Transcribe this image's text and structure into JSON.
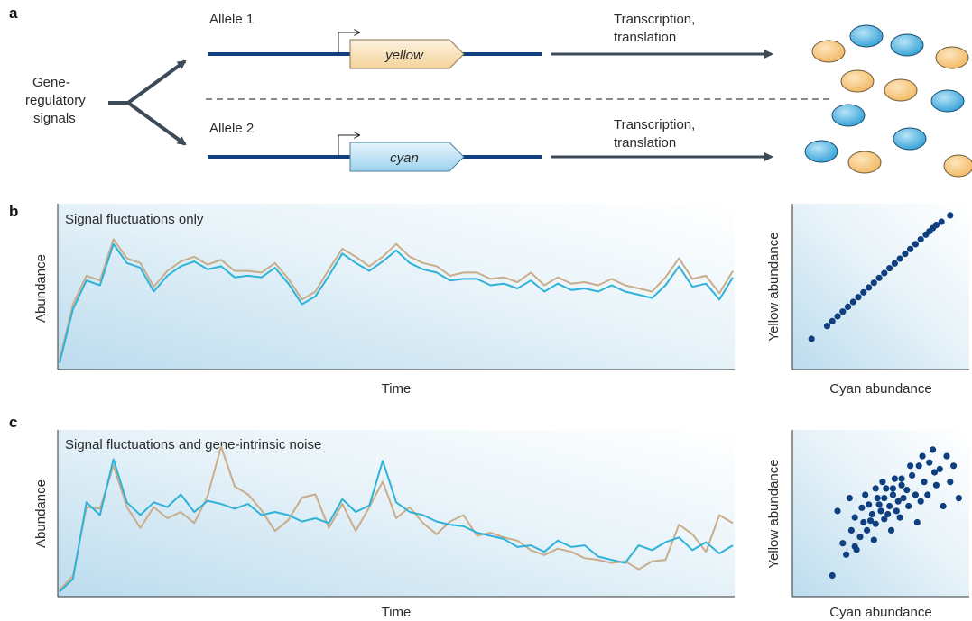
{
  "panel_a": {
    "letter": "a",
    "signals_label": [
      "Gene-",
      "regulatory",
      "signals"
    ],
    "allele1": "Allele 1",
    "allele2": "Allele 2",
    "gene1": "yellow",
    "gene2": "cyan",
    "process_label_1": [
      "Transcription,",
      "translation"
    ],
    "process_label_2": [
      "Transcription,",
      "translation"
    ],
    "colors": {
      "yellow_protein": "#f4c27a",
      "cyan_protein": "#47aee0",
      "dna": "#123f80",
      "arrow": "#3d4a57"
    }
  },
  "panel_b": {
    "letter": "b",
    "title": "Signal fluctuations only",
    "xlabel": "Time",
    "ylabel": "Abundance",
    "scatter_xlabel": "Cyan abundance",
    "scatter_ylabel": "Yellow abundance"
  },
  "panel_c": {
    "letter": "c",
    "title": "Signal fluctuations and gene-intrinsic noise",
    "xlabel": "Time",
    "ylabel": "Abundance",
    "scatter_xlabel": "Cyan abundance",
    "scatter_ylabel": "Yellow abundance"
  },
  "chart_data": [
    {
      "type": "line",
      "title": "Signal fluctuations only",
      "xlabel": "Time",
      "ylabel": "Abundance",
      "x": [
        0,
        2,
        4,
        6,
        8,
        10,
        12,
        14,
        16,
        18,
        20,
        22,
        24,
        26,
        28,
        30,
        32,
        34,
        36,
        38,
        40,
        42,
        44,
        46,
        48,
        50,
        52,
        54,
        56,
        58,
        60,
        62,
        64,
        66,
        68,
        70,
        72,
        74,
        76,
        78,
        80,
        82,
        84,
        86,
        88,
        90,
        92,
        94,
        96,
        98,
        100
      ],
      "series": [
        {
          "color": "#c9ad8b",
          "values": [
            0.05,
            0.4,
            0.58,
            0.55,
            0.81,
            0.69,
            0.66,
            0.51,
            0.61,
            0.67,
            0.7,
            0.65,
            0.68,
            0.61,
            0.61,
            0.6,
            0.66,
            0.56,
            0.43,
            0.48,
            0.62,
            0.75,
            0.7,
            0.64,
            0.7,
            0.78,
            0.7,
            0.66,
            0.64,
            0.58,
            0.6,
            0.6,
            0.56,
            0.57,
            0.54,
            0.6,
            0.52,
            0.57,
            0.53,
            0.54,
            0.52,
            0.56,
            0.52,
            0.5,
            0.48,
            0.57,
            0.69,
            0.56,
            0.58,
            0.47,
            0.61
          ]
        },
        {
          "color": "#2fb2d8",
          "values": [
            0.03,
            0.37,
            0.55,
            0.52,
            0.78,
            0.66,
            0.63,
            0.48,
            0.58,
            0.64,
            0.67,
            0.62,
            0.64,
            0.57,
            0.58,
            0.57,
            0.63,
            0.53,
            0.4,
            0.45,
            0.58,
            0.72,
            0.66,
            0.61,
            0.67,
            0.74,
            0.66,
            0.62,
            0.6,
            0.55,
            0.56,
            0.56,
            0.52,
            0.53,
            0.5,
            0.55,
            0.48,
            0.53,
            0.49,
            0.5,
            0.48,
            0.52,
            0.48,
            0.46,
            0.44,
            0.52,
            0.64,
            0.51,
            0.53,
            0.43,
            0.57
          ]
        }
      ]
    },
    {
      "type": "scatter",
      "xlabel": "Cyan abundance",
      "ylabel": "Yellow abundance",
      "points": [
        [
          0.1,
          0.18
        ],
        [
          0.19,
          0.26
        ],
        [
          0.22,
          0.29
        ],
        [
          0.25,
          0.32
        ],
        [
          0.28,
          0.35
        ],
        [
          0.31,
          0.38
        ],
        [
          0.34,
          0.41
        ],
        [
          0.37,
          0.44
        ],
        [
          0.4,
          0.47
        ],
        [
          0.43,
          0.5
        ],
        [
          0.46,
          0.53
        ],
        [
          0.49,
          0.56
        ],
        [
          0.52,
          0.59
        ],
        [
          0.55,
          0.62
        ],
        [
          0.58,
          0.65
        ],
        [
          0.61,
          0.68
        ],
        [
          0.64,
          0.71
        ],
        [
          0.67,
          0.74
        ],
        [
          0.7,
          0.77
        ],
        [
          0.73,
          0.8
        ],
        [
          0.76,
          0.83
        ],
        [
          0.78,
          0.85
        ],
        [
          0.8,
          0.87
        ],
        [
          0.82,
          0.89
        ],
        [
          0.85,
          0.91
        ],
        [
          0.9,
          0.95
        ]
      ]
    },
    {
      "type": "line",
      "title": "Signal fluctuations and gene-intrinsic noise",
      "xlabel": "Time",
      "ylabel": "Abundance",
      "x": [
        0,
        2,
        4,
        6,
        8,
        10,
        12,
        14,
        16,
        18,
        20,
        22,
        24,
        26,
        28,
        30,
        32,
        34,
        36,
        38,
        40,
        42,
        44,
        46,
        48,
        50,
        52,
        54,
        56,
        58,
        60,
        62,
        64,
        66,
        68,
        70,
        72,
        74,
        76,
        78,
        80,
        82,
        84,
        86,
        88,
        90,
        92,
        94,
        96,
        98,
        100
      ],
      "series": [
        {
          "color": "#c9ad8b",
          "values": [
            0.03,
            0.12,
            0.55,
            0.54,
            0.81,
            0.55,
            0.42,
            0.55,
            0.48,
            0.52,
            0.45,
            0.62,
            0.93,
            0.68,
            0.63,
            0.53,
            0.4,
            0.47,
            0.61,
            0.63,
            0.42,
            0.57,
            0.4,
            0.55,
            0.71,
            0.48,
            0.55,
            0.45,
            0.38,
            0.46,
            0.5,
            0.37,
            0.39,
            0.36,
            0.34,
            0.28,
            0.25,
            0.29,
            0.27,
            0.23,
            0.22,
            0.2,
            0.21,
            0.16,
            0.21,
            0.22,
            0.44,
            0.38,
            0.27,
            0.5,
            0.45
          ]
        },
        {
          "color": "#2fb2d8",
          "values": [
            0.02,
            0.1,
            0.58,
            0.5,
            0.85,
            0.58,
            0.5,
            0.58,
            0.55,
            0.63,
            0.52,
            0.59,
            0.57,
            0.54,
            0.57,
            0.5,
            0.52,
            0.5,
            0.46,
            0.48,
            0.45,
            0.6,
            0.52,
            0.56,
            0.84,
            0.58,
            0.52,
            0.5,
            0.46,
            0.44,
            0.43,
            0.39,
            0.37,
            0.35,
            0.3,
            0.31,
            0.27,
            0.34,
            0.3,
            0.31,
            0.24,
            0.22,
            0.2,
            0.31,
            0.28,
            0.33,
            0.36,
            0.28,
            0.33,
            0.26,
            0.31
          ]
        }
      ]
    },
    {
      "type": "scatter",
      "xlabel": "Cyan abundance",
      "ylabel": "Yellow abundance",
      "points": [
        [
          0.22,
          0.12
        ],
        [
          0.3,
          0.25
        ],
        [
          0.28,
          0.32
        ],
        [
          0.35,
          0.3
        ],
        [
          0.33,
          0.4
        ],
        [
          0.38,
          0.36
        ],
        [
          0.4,
          0.45
        ],
        [
          0.42,
          0.4
        ],
        [
          0.45,
          0.5
        ],
        [
          0.47,
          0.44
        ],
        [
          0.43,
          0.56
        ],
        [
          0.5,
          0.52
        ],
        [
          0.52,
          0.47
        ],
        [
          0.48,
          0.6
        ],
        [
          0.55,
          0.55
        ],
        [
          0.57,
          0.62
        ],
        [
          0.53,
          0.66
        ],
        [
          0.6,
          0.58
        ],
        [
          0.62,
          0.68
        ],
        [
          0.58,
          0.72
        ],
        [
          0.65,
          0.65
        ],
        [
          0.68,
          0.74
        ],
        [
          0.7,
          0.62
        ],
        [
          0.72,
          0.8
        ],
        [
          0.75,
          0.7
        ],
        [
          0.78,
          0.82
        ],
        [
          0.8,
          0.9
        ],
        [
          0.84,
          0.78
        ],
        [
          0.88,
          0.86
        ],
        [
          0.9,
          0.7
        ],
        [
          0.95,
          0.6
        ],
        [
          0.25,
          0.52
        ],
        [
          0.32,
          0.6
        ],
        [
          0.36,
          0.28
        ],
        [
          0.41,
          0.62
        ],
        [
          0.46,
          0.34
        ],
        [
          0.51,
          0.7
        ],
        [
          0.56,
          0.4
        ],
        [
          0.61,
          0.48
        ],
        [
          0.66,
          0.55
        ],
        [
          0.71,
          0.45
        ],
        [
          0.73,
          0.58
        ],
        [
          0.77,
          0.62
        ],
        [
          0.82,
          0.68
        ],
        [
          0.86,
          0.55
        ],
        [
          0.92,
          0.8
        ],
        [
          0.35,
          0.48
        ],
        [
          0.44,
          0.46
        ],
        [
          0.49,
          0.56
        ],
        [
          0.54,
          0.5
        ],
        [
          0.59,
          0.52
        ],
        [
          0.63,
          0.6
        ],
        [
          0.39,
          0.54
        ],
        [
          0.47,
          0.66
        ],
        [
          0.52,
          0.6
        ],
        [
          0.57,
          0.66
        ],
        [
          0.62,
          0.72
        ],
        [
          0.67,
          0.8
        ],
        [
          0.74,
          0.86
        ],
        [
          0.81,
          0.76
        ]
      ]
    }
  ]
}
